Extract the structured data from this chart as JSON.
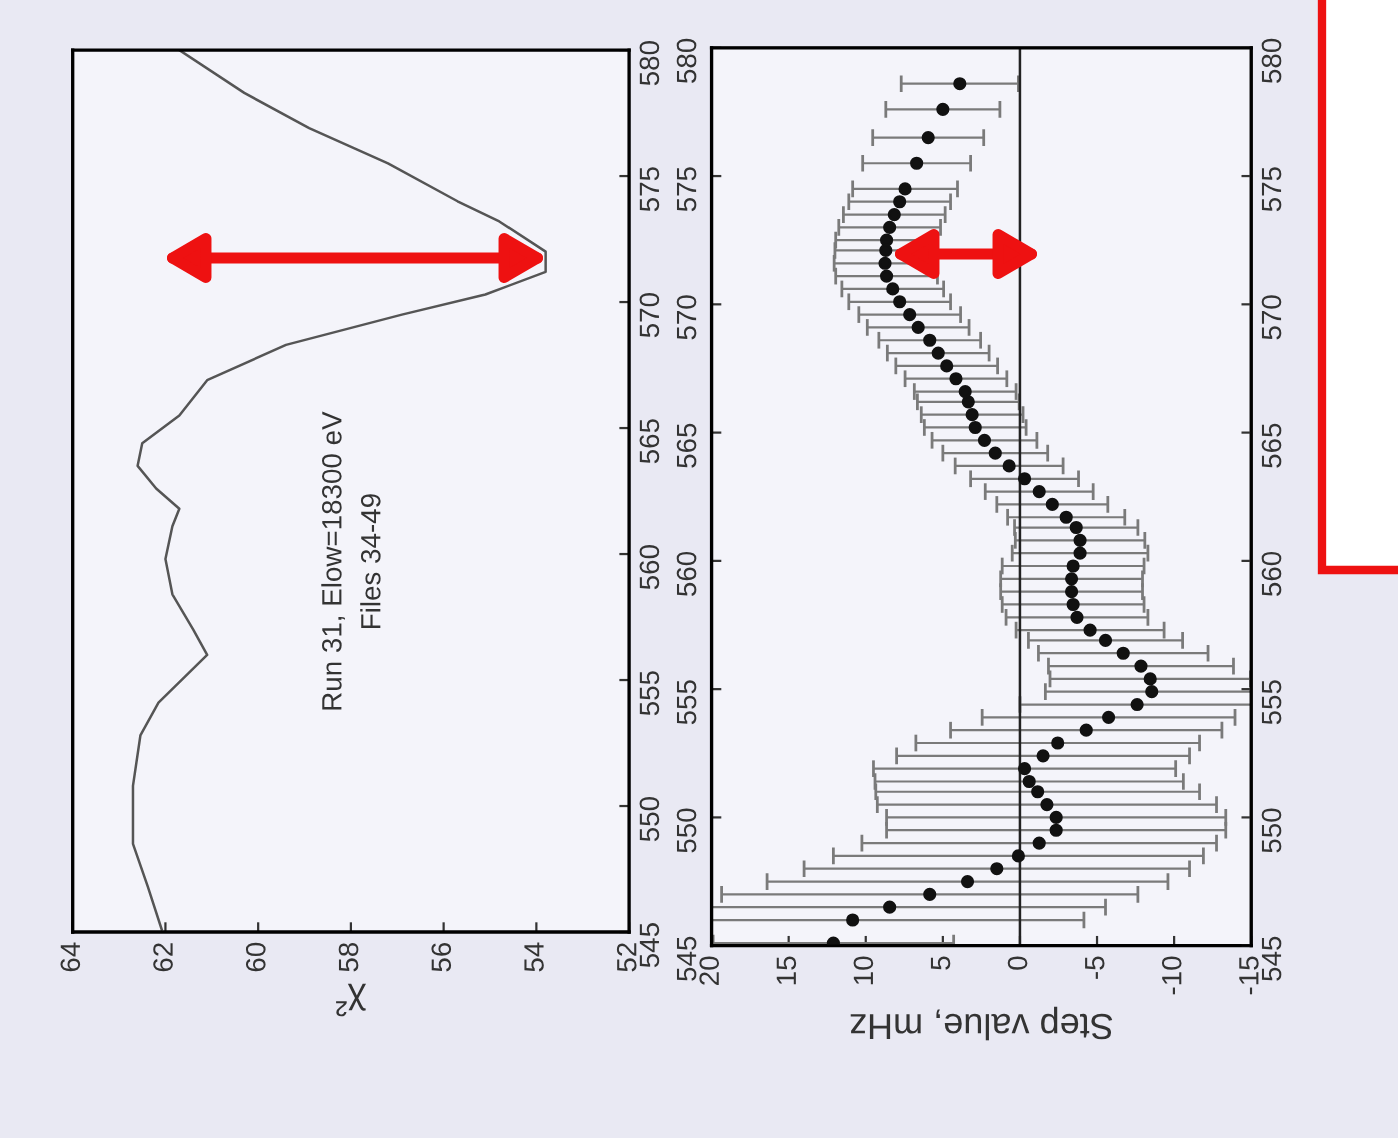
{
  "chart_data": [
    {
      "type": "line",
      "orientation": "horizontal",
      "xlabel": "χ²",
      "annotations": [
        "Run 31, Elow=18300 eV",
        "Files 34-49"
      ],
      "xlim": [
        64,
        52
      ],
      "xticks": [
        64,
        62,
        60,
        58,
        56,
        54,
        52
      ],
      "ylim": [
        545,
        580
      ],
      "yticks": [
        545,
        550,
        555,
        560,
        565,
        570,
        575,
        580
      ],
      "marker": "none",
      "grid": false,
      "series": [
        {
          "color": "#555555",
          "x": [
            545.1,
            546.8,
            548.5,
            550.8,
            552.8,
            554.1,
            555.1,
            556.0,
            557.0,
            558.4,
            559.8,
            561.1,
            561.8,
            562.6,
            563.5,
            564.4,
            565.5,
            566.9,
            568.3,
            569.5,
            570.3,
            571.2,
            572.0,
            573.2,
            574.0,
            575.5,
            576.9,
            578.3,
            580.0
          ],
          "values": [
            62.08,
            62.38,
            62.7,
            62.7,
            62.54,
            62.15,
            61.6,
            61.1,
            61.4,
            61.85,
            62.0,
            61.85,
            61.7,
            62.2,
            62.6,
            62.5,
            61.7,
            61.1,
            59.4,
            56.9,
            55.1,
            53.8,
            53.8,
            54.8,
            55.7,
            57.2,
            58.9,
            60.3,
            61.7
          ]
        }
      ]
    },
    {
      "type": "scatter",
      "orientation": "horizontal",
      "xlabel": "Step value, mHz",
      "xlim": [
        20,
        -15
      ],
      "xticks": [
        20,
        15,
        10,
        5,
        0,
        -5,
        -10,
        -15
      ],
      "ylim": [
        545,
        580
      ],
      "yticks": [
        545,
        550,
        555,
        560,
        565,
        570,
        575,
        580
      ],
      "y2lim": [
        545,
        580
      ],
      "y2ticks": [
        545,
        550,
        555,
        560,
        565,
        570,
        575,
        580
      ],
      "marker": "circle",
      "grid": false,
      "ref_lines": [
        {
          "axis": "x",
          "value": 0,
          "color": "#222222"
        }
      ],
      "series": [
        {
          "color": "#111111",
          "x": [
            545.1,
            546.0,
            546.5,
            547.0,
            547.5,
            548.0,
            548.5,
            549.0,
            549.5,
            550.0,
            550.5,
            551.0,
            551.4,
            551.9,
            552.4,
            552.9,
            553.4,
            553.9,
            554.4,
            554.9,
            555.4,
            555.9,
            556.4,
            556.9,
            557.3,
            557.8,
            558.3,
            558.8,
            559.3,
            559.8,
            560.3,
            560.8,
            561.3,
            561.7,
            562.2,
            562.7,
            563.2,
            563.7,
            564.2,
            564.7,
            565.2,
            565.7,
            566.2,
            566.6,
            567.1,
            567.6,
            568.1,
            568.6,
            569.1,
            569.6,
            570.1,
            570.6,
            571.1,
            571.6,
            572.1,
            572.5,
            573.0,
            573.5,
            574.0,
            574.5,
            575.5,
            576.5,
            577.6,
            578.6
          ],
          "values": [
            12.1,
            10.85,
            8.45,
            5.85,
            3.4,
            1.5,
            0.1,
            -1.25,
            -2.35,
            -2.35,
            -1.75,
            -1.15,
            -0.6,
            -0.3,
            -1.5,
            -2.45,
            -4.3,
            -5.75,
            -7.6,
            -8.55,
            -8.45,
            -7.85,
            -6.7,
            -5.55,
            -4.55,
            -3.7,
            -3.45,
            -3.35,
            -3.35,
            -3.45,
            -3.9,
            -3.9,
            -3.65,
            -3.0,
            -2.1,
            -1.25,
            -0.3,
            0.7,
            1.6,
            2.3,
            2.9,
            3.1,
            3.35,
            3.55,
            4.15,
            4.75,
            5.3,
            5.85,
            6.6,
            7.15,
            7.8,
            8.25,
            8.65,
            8.75,
            8.7,
            8.65,
            8.45,
            8.15,
            7.8,
            7.45,
            6.7,
            5.95,
            5.0,
            3.9
          ],
          "errors": [
            7.8,
            15,
            14,
            13.5,
            13,
            12.5,
            12,
            11.5,
            11,
            11,
            11,
            10.5,
            10,
            9.8,
            9.5,
            9.2,
            8.8,
            8.2,
            7.6,
            6.9,
            6.5,
            6.0,
            5.5,
            5.0,
            4.8,
            4.6,
            4.6,
            4.6,
            4.6,
            4.6,
            4.4,
            4.2,
            4.0,
            3.8,
            3.6,
            3.5,
            3.5,
            3.5,
            3.4,
            3.4,
            3.3,
            3.3,
            3.3,
            3.3,
            3.3,
            3.3,
            3.3,
            3.3,
            3.3,
            3.3,
            3.3,
            3.3,
            3.3,
            3.3,
            3.3,
            3.3,
            3.3,
            3.3,
            3.3,
            3.4,
            3.5,
            3.6,
            3.7,
            3.8
          ]
        }
      ]
    }
  ]
}
